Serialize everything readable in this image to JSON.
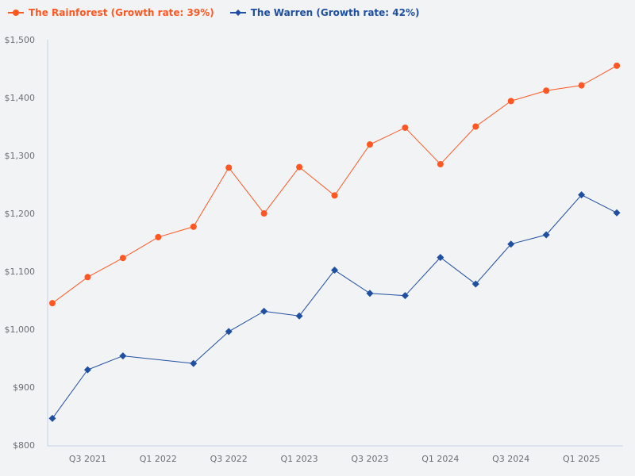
{
  "chart_data": {
    "type": "line",
    "categories": [
      "Q2 2021",
      "Q3 2021",
      "Q4 2021",
      "Q1 2022",
      "Q2 2022",
      "Q3 2022",
      "Q4 2022",
      "Q1 2023",
      "Q2 2023",
      "Q3 2023",
      "Q4 2023",
      "Q1 2024",
      "Q2 2024",
      "Q3 2024",
      "Q4 2024",
      "Q1 2025",
      "Q2 2025"
    ],
    "x_tick_labels": [
      "Q3 2021",
      "Q1 2022",
      "Q3 2022",
      "Q1 2023",
      "Q3 2023",
      "Q1 2024",
      "Q3 2024",
      "Q1 2025"
    ],
    "y_tick_labels": [
      "$800",
      "$900",
      "$1,000",
      "$1,100",
      "$1,200",
      "$1,300",
      "$1,400",
      "$1,500"
    ],
    "ylim": [
      800,
      1500
    ],
    "grid": false,
    "legend_position": "top-left",
    "series": [
      {
        "name": "The Rainforest (Growth rate: 39%)",
        "color": "#ff5722",
        "marker": "circle",
        "values": [
          1045,
          1090,
          1123,
          1159,
          1177,
          1279,
          1200,
          1280,
          1231,
          1319,
          1348,
          1285,
          1350,
          1394,
          1412,
          1421,
          1455
        ]
      },
      {
        "name": "The Warren (Growth rate: 42%)",
        "color": "#1e4fa0",
        "marker": "diamond",
        "values": [
          846,
          930,
          954,
          null,
          941,
          996,
          1031,
          1023,
          1102,
          1062,
          1058,
          1124,
          1078,
          1147,
          1163,
          1232,
          1201
        ]
      }
    ]
  }
}
